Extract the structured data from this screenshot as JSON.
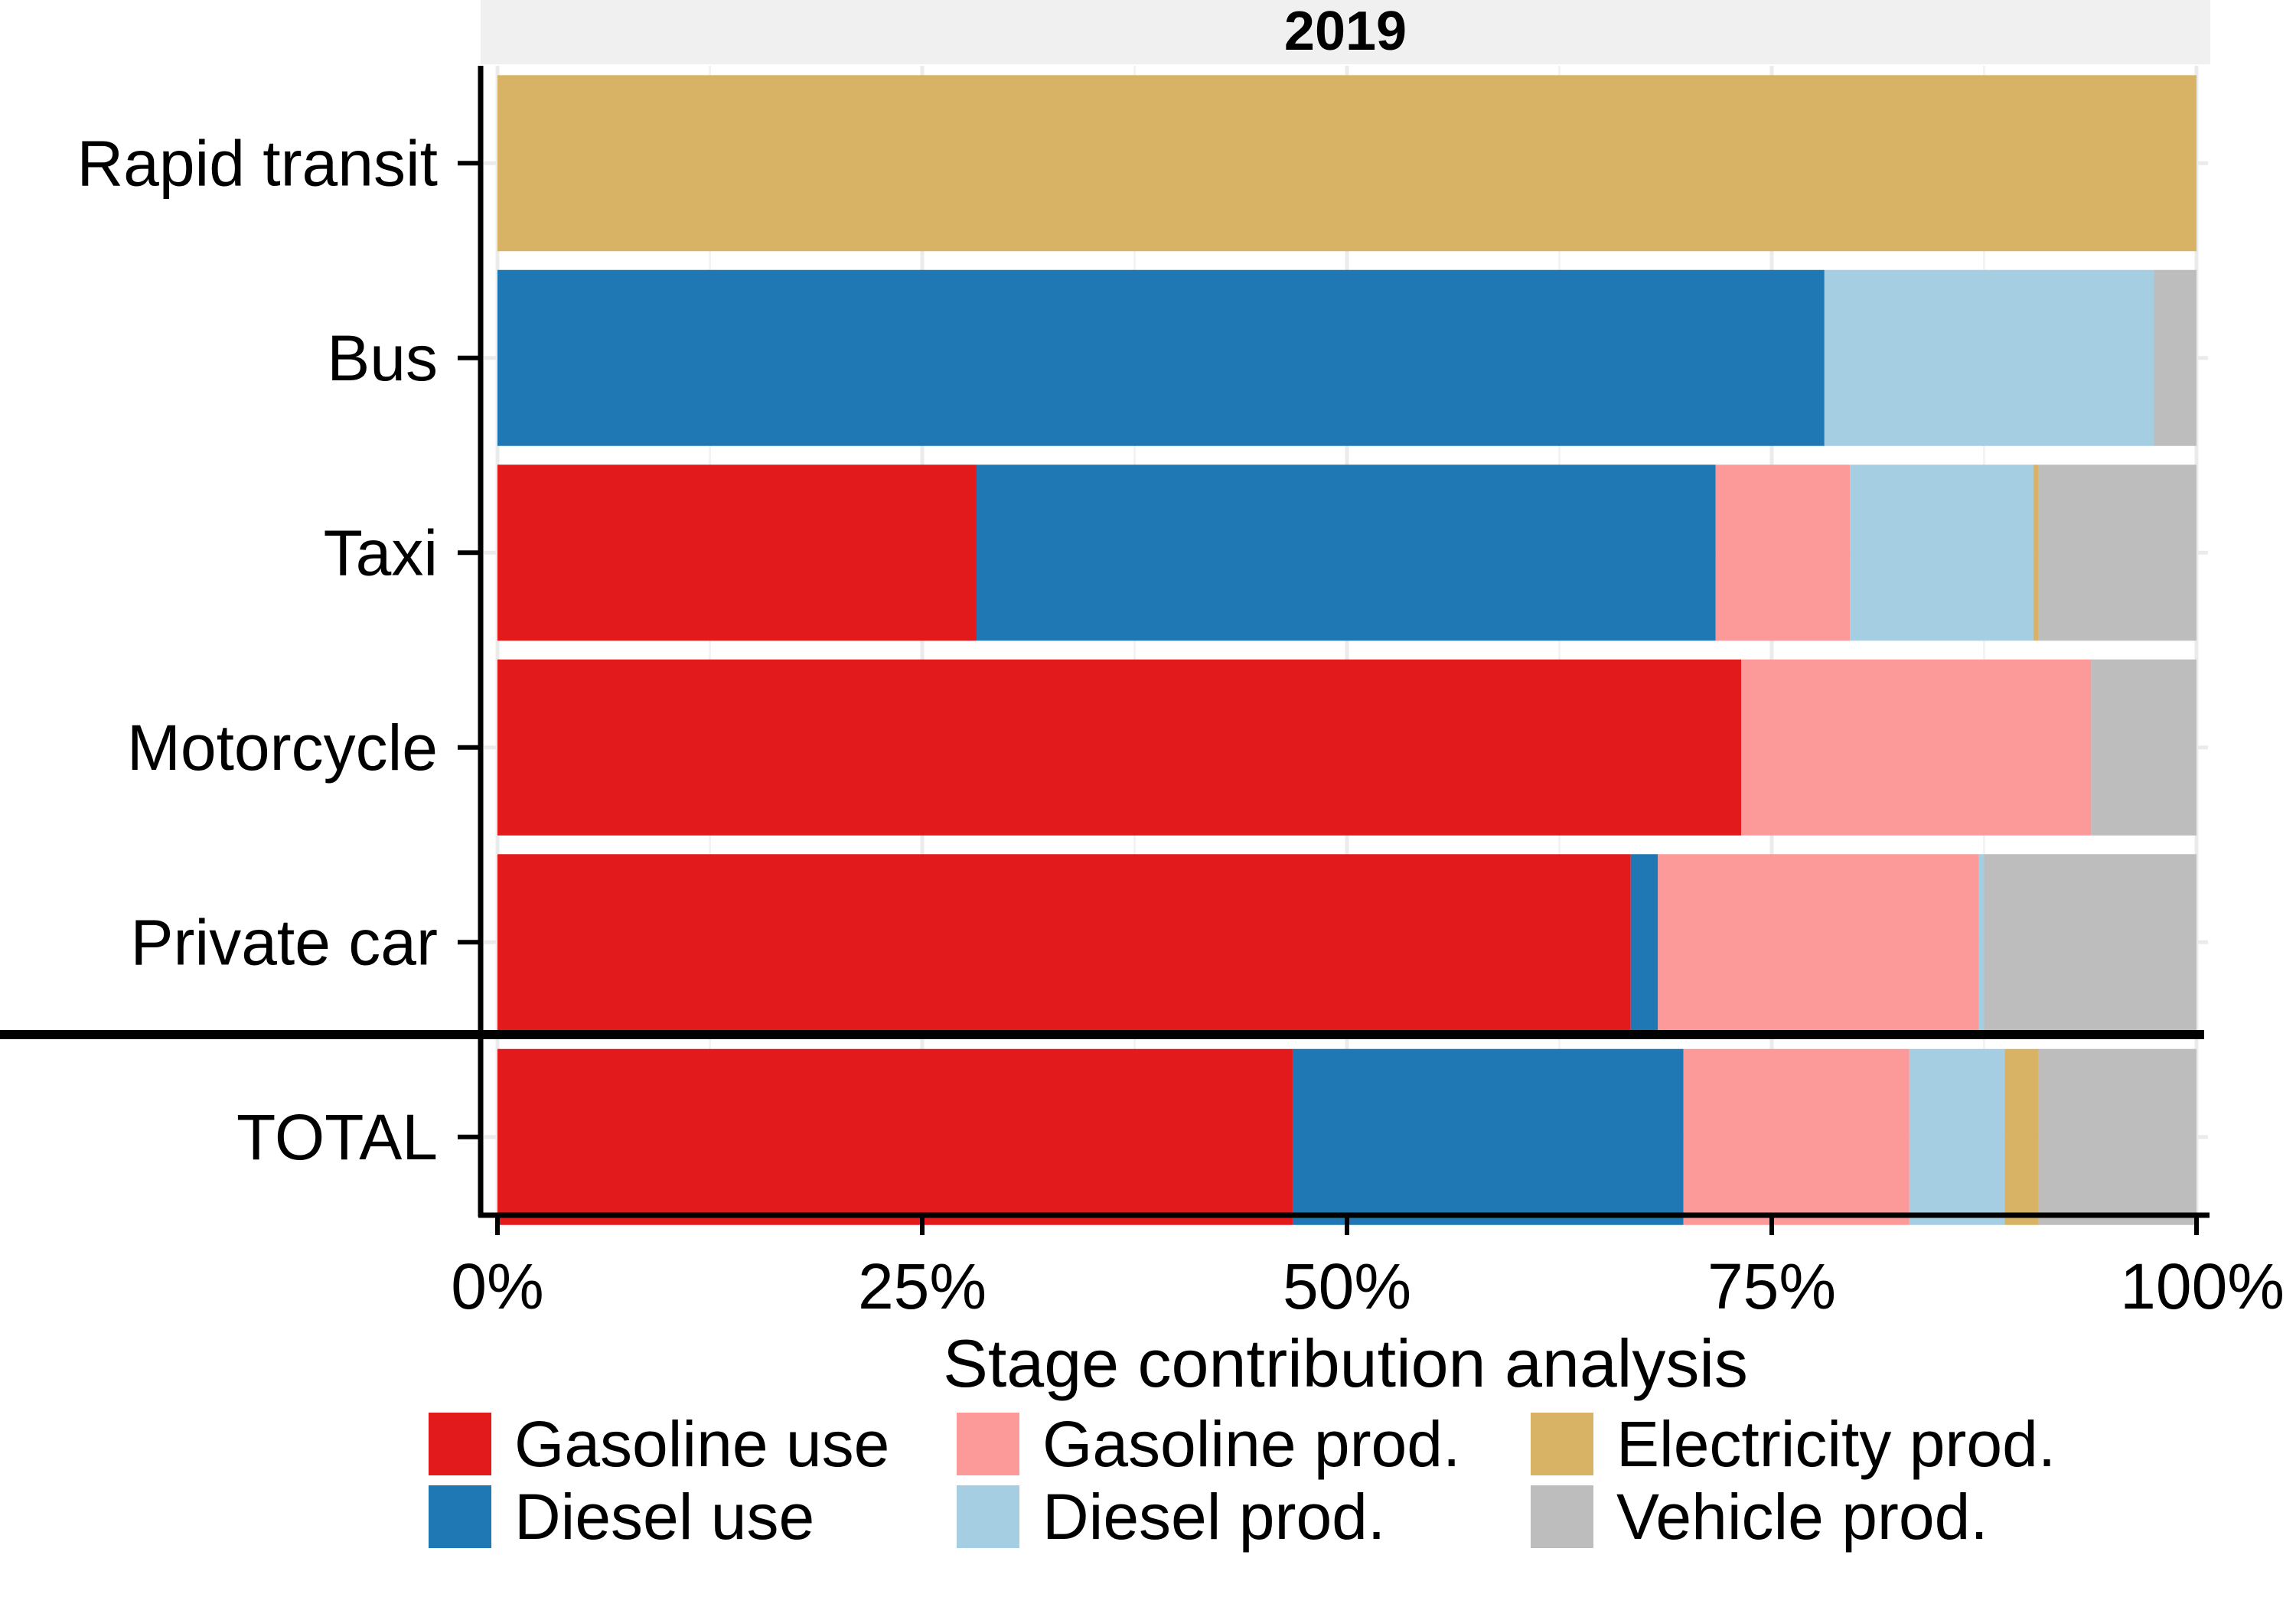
{
  "chart_data": {
    "type": "bar",
    "orientation": "horizontal",
    "stacked": true,
    "normalized": true,
    "facet_title": "2019",
    "xlabel": "Stage contribution analysis",
    "ylabel": "",
    "xlim": [
      0,
      100
    ],
    "x_ticks": [
      "0%",
      "25%",
      "50%",
      "75%",
      "100%"
    ],
    "x_tick_values": [
      0,
      25,
      50,
      75,
      100
    ],
    "grid": true,
    "legend_position": "bottom",
    "categories": [
      "Rapid transit",
      "Bus",
      "Taxi",
      "Motorcycle",
      "Private car",
      "TOTAL"
    ],
    "series": [
      {
        "name": "Gasoline use",
        "color": "#e31a1c",
        "values": [
          0,
          0,
          28.2,
          73.2,
          66.7,
          46.8
        ]
      },
      {
        "name": "Diesel use",
        "color": "#1f78b4",
        "values": [
          0,
          78.1,
          43.5,
          0,
          1.6,
          23.0
        ]
      },
      {
        "name": "Gasoline prod.",
        "color": "#fb9a99",
        "values": [
          0,
          0,
          7.9,
          20.6,
          18.9,
          13.3
        ]
      },
      {
        "name": "Diesel prod.",
        "color": "#a6cee3",
        "values": [
          0,
          19.4,
          10.8,
          0,
          0.3,
          5.6
        ]
      },
      {
        "name": "Electricity prod.",
        "color": "#d9b365",
        "values": [
          100,
          0,
          0.3,
          0,
          0,
          2.0
        ]
      },
      {
        "name": "Vehicle prod.",
        "color": "#bdbdbd",
        "values": [
          0,
          2.5,
          9.3,
          6.2,
          12.5,
          9.3
        ]
      }
    ],
    "legend_layout": [
      [
        "Gasoline use",
        "Gasoline prod.",
        "Electricity prod."
      ],
      [
        "Diesel use",
        "Diesel prod.",
        "Vehicle prod."
      ]
    ]
  }
}
